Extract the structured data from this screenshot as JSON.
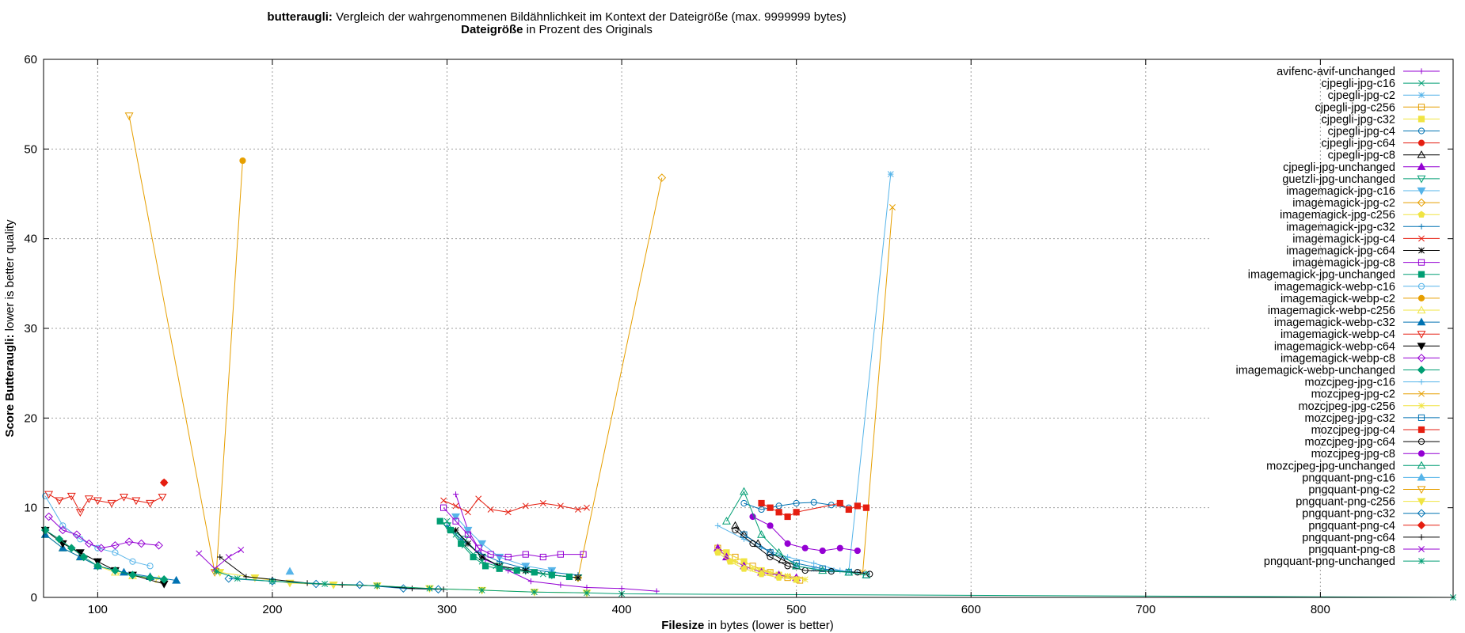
{
  "chart_data": {
    "type": "line",
    "title_bold": "butteraugli:",
    "title_rest": " Vergleich der wahrgenommenen Bildähnlichkeit im Kontext der Dateigröße (max. 9999999 bytes)",
    "subtitle_bold": "Dateigröße",
    "subtitle_rest": " in Prozent des Originals",
    "xlabel_bold": "Filesize",
    "xlabel_rest": " in bytes (lower is better)",
    "ylabel_bold": "Score Butteraugli:",
    "ylabel_rest": " lower is better quality",
    "xlim": [
      69,
      876
    ],
    "ylim": [
      0,
      60
    ],
    "xticks": [
      100,
      200,
      300,
      400,
      500,
      600,
      700,
      800
    ],
    "yticks": [
      0,
      10,
      20,
      30,
      40,
      50,
      60
    ],
    "grid": true,
    "legend_position": "right",
    "series": [
      {
        "name": "avifenc-avif-unchanged",
        "color": "#9400d3",
        "marker": "plus",
        "x": [
          305,
          312,
          322,
          335,
          348,
          365,
          380,
          400,
          420
        ],
        "y": [
          11.5,
          7.5,
          4.2,
          3.0,
          1.8,
          1.4,
          1.1,
          1.0,
          0.7
        ]
      },
      {
        "name": "cjpegli-jpg-c16",
        "color": "#009e73",
        "marker": "x",
        "x": [
          300,
          305,
          310,
          315,
          320,
          328,
          340,
          355,
          370
        ],
        "y": [
          8.5,
          7.0,
          5.8,
          4.8,
          4.0,
          3.5,
          3.0,
          2.6,
          2.3
        ]
      },
      {
        "name": "cjpegli-jpg-c2",
        "color": "#56b4e9",
        "marker": "star",
        "x": [
          500,
          510,
          520,
          530,
          554
        ],
        "y": [
          3.5,
          3.2,
          3.0,
          2.9,
          47.2
        ]
      },
      {
        "name": "cjpegli-jpg-c256",
        "color": "#e69f00",
        "marker": "square-open",
        "x": [
          455,
          465,
          475,
          485,
          495,
          502
        ],
        "y": [
          5.5,
          4.5,
          3.5,
          2.8,
          2.2,
          1.9
        ]
      },
      {
        "name": "cjpegli-jpg-c32",
        "color": "#f0e442",
        "marker": "square",
        "x": [
          460,
          470,
          480,
          490,
          500
        ],
        "y": [
          5.0,
          4.0,
          3.0,
          2.5,
          2.0
        ]
      },
      {
        "name": "cjpegli-jpg-c4",
        "color": "#0072b2",
        "marker": "circle-open",
        "x": [
          470,
          480,
          490,
          500,
          510,
          520,
          530
        ],
        "y": [
          10.5,
          9.8,
          10.2,
          10.5,
          10.6,
          10.3,
          10.0
        ]
      },
      {
        "name": "cjpegli-jpg-c64",
        "color": "#e51e10",
        "marker": "circle",
        "x": [
          138
        ],
        "y": [
          12.8
        ]
      },
      {
        "name": "cjpegli-jpg-c8",
        "color": "#000000",
        "marker": "triangle-open",
        "x": [
          465,
          470,
          478,
          485,
          492,
          500
        ],
        "y": [
          8.0,
          7.0,
          6.0,
          5.0,
          4.2,
          3.5
        ]
      },
      {
        "name": "cjpegli-jpg-unchanged",
        "color": "#9400d3",
        "marker": "triangle",
        "x": [
          455,
          460,
          470,
          480,
          490,
          500
        ],
        "y": [
          5.5,
          4.5,
          3.5,
          2.8,
          2.5,
          2.2
        ]
      },
      {
        "name": "guetzli-jpg-unchanged",
        "color": "#009e73",
        "marker": "tri-down-open",
        "x": [
          300,
          310,
          320,
          330,
          345,
          360,
          375
        ],
        "y": [
          8.0,
          6.5,
          4.5,
          3.5,
          3.0,
          2.5,
          2.2
        ]
      },
      {
        "name": "imagemagick-jpg-c16",
        "color": "#56b4e9",
        "marker": "tri-down",
        "x": [
          305,
          312,
          320,
          330,
          345,
          360
        ],
        "y": [
          9.0,
          7.5,
          6.0,
          4.5,
          3.5,
          3.0
        ]
      },
      {
        "name": "imagemagick-jpg-c2",
        "color": "#e69f00",
        "marker": "diamond-open",
        "x": [
          375,
          423
        ],
        "y": [
          2.2,
          46.8
        ]
      },
      {
        "name": "imagemagick-jpg-c256",
        "color": "#f0e442",
        "marker": "pentagon",
        "x": [
          455,
          462,
          470,
          480,
          490,
          500
        ],
        "y": [
          5.0,
          4.0,
          3.2,
          2.6,
          2.2,
          2.0
        ]
      },
      {
        "name": "imagemagick-jpg-c32",
        "color": "#0072b2",
        "marker": "plus",
        "x": [
          300,
          308,
          318,
          330,
          345,
          360,
          375
        ],
        "y": [
          8.0,
          6.5,
          5.0,
          4.0,
          3.2,
          2.8,
          2.5
        ]
      },
      {
        "name": "imagemagick-jpg-c4",
        "color": "#e51e10",
        "marker": "x",
        "x": [
          298,
          305,
          312,
          318,
          325,
          335,
          345,
          355,
          365,
          375,
          380
        ],
        "y": [
          10.8,
          10.2,
          9.5,
          11.0,
          9.8,
          9.5,
          10.2,
          10.5,
          10.2,
          9.8,
          10.0
        ]
      },
      {
        "name": "imagemagick-jpg-c64",
        "color": "#000000",
        "marker": "star",
        "x": [
          305,
          312,
          320,
          330,
          345,
          360,
          375
        ],
        "y": [
          7.5,
          6.0,
          4.5,
          3.5,
          3.0,
          2.5,
          2.2
        ]
      },
      {
        "name": "imagemagick-jpg-c8",
        "color": "#9400d3",
        "marker": "square-open",
        "x": [
          298,
          305,
          312,
          318,
          325,
          335,
          345,
          355,
          365,
          378
        ],
        "y": [
          10.0,
          8.5,
          7.0,
          5.5,
          4.8,
          4.5,
          4.8,
          4.5,
          4.8,
          4.8
        ]
      },
      {
        "name": "imagemagick-jpg-unchanged",
        "color": "#009e73",
        "marker": "square",
        "x": [
          296,
          302,
          308,
          315,
          322,
          330,
          340,
          350,
          360,
          370
        ],
        "y": [
          8.5,
          7.5,
          6.0,
          4.5,
          3.5,
          3.2,
          3.0,
          2.8,
          2.5,
          2.3
        ]
      },
      {
        "name": "imagemagick-webp-c16",
        "color": "#56b4e9",
        "marker": "circle-open",
        "x": [
          70,
          80,
          90,
          100,
          110,
          120,
          130
        ],
        "y": [
          11.3,
          8.0,
          6.5,
          5.5,
          5.0,
          4.0,
          3.5
        ]
      },
      {
        "name": "imagemagick-webp-c2",
        "color": "#e69f00",
        "marker": "circle",
        "x": [
          168,
          183
        ],
        "y": [
          3.0,
          48.7
        ]
      },
      {
        "name": "imagemagick-webp-c256",
        "color": "#f0e442",
        "marker": "triangle-open",
        "x": [
          70,
          80,
          90,
          100,
          110,
          120,
          135
        ],
        "y": [
          7.0,
          5.5,
          4.5,
          3.5,
          2.8,
          2.4,
          2.0
        ]
      },
      {
        "name": "imagemagick-webp-c32",
        "color": "#0072b2",
        "marker": "triangle",
        "x": [
          70,
          80,
          90,
          100,
          115,
          130,
          145
        ],
        "y": [
          7.0,
          5.5,
          4.5,
          3.5,
          2.8,
          2.3,
          1.9
        ]
      },
      {
        "name": "imagemagick-webp-c4",
        "color": "#e51e10",
        "marker": "tri-down-open",
        "x": [
          72,
          78,
          85,
          90,
          95,
          100,
          108,
          115,
          122,
          130,
          137
        ],
        "y": [
          11.5,
          10.8,
          11.3,
          9.5,
          11.0,
          10.8,
          10.5,
          11.2,
          10.8,
          10.5,
          11.2
        ]
      },
      {
        "name": "imagemagick-webp-c64",
        "color": "#000000",
        "marker": "tri-down",
        "x": [
          70,
          80,
          90,
          100,
          110,
          120,
          138
        ],
        "y": [
          7.5,
          6.0,
          5.0,
          4.0,
          3.0,
          2.5,
          1.5
        ]
      },
      {
        "name": "imagemagick-webp-c8",
        "color": "#9400d3",
        "marker": "diamond-open",
        "x": [
          72,
          80,
          88,
          95,
          102,
          110,
          118,
          125,
          135
        ],
        "y": [
          9.0,
          7.5,
          7.0,
          6.0,
          5.5,
          5.8,
          6.2,
          6.0,
          5.8
        ]
      },
      {
        "name": "imagemagick-webp-unchanged",
        "color": "#009e73",
        "marker": "diamond",
        "x": [
          70,
          78,
          85,
          92,
          100,
          110,
          120,
          130,
          138
        ],
        "y": [
          7.5,
          6.5,
          5.5,
          4.5,
          3.5,
          3.0,
          2.5,
          2.2,
          2.0
        ]
      },
      {
        "name": "mozcjpeg-jpg-c16",
        "color": "#56b4e9",
        "marker": "plus",
        "x": [
          455,
          470,
          480,
          495,
          510,
          525,
          535
        ],
        "y": [
          8.0,
          6.5,
          5.5,
          4.5,
          3.8,
          3.0,
          2.8
        ]
      },
      {
        "name": "mozcjpeg-jpg-c2",
        "color": "#e69f00",
        "marker": "x",
        "x": [
          538,
          555
        ],
        "y": [
          2.8,
          43.5
        ]
      },
      {
        "name": "mozcjpeg-jpg-c256",
        "color": "#f0e442",
        "marker": "star",
        "x": [
          455,
          465,
          475,
          485,
          495,
          505
        ],
        "y": [
          5.2,
          4.0,
          3.2,
          2.8,
          2.4,
          2.0
        ]
      },
      {
        "name": "mozcjpeg-jpg-c32",
        "color": "#0072b2",
        "marker": "square-open",
        "x": [
          470,
          485,
          500,
          515,
          530,
          540
        ],
        "y": [
          7.0,
          5.0,
          3.8,
          3.2,
          2.8,
          2.5
        ]
      },
      {
        "name": "mozcjpeg-jpg-c4",
        "color": "#e51e10",
        "marker": "square",
        "x": [
          480,
          485,
          490,
          495,
          500,
          525,
          530,
          535,
          540
        ],
        "y": [
          10.5,
          10.0,
          9.5,
          9.0,
          9.5,
          10.5,
          9.8,
          10.2,
          10.0
        ]
      },
      {
        "name": "mozcjpeg-jpg-c64",
        "color": "#000000",
        "marker": "circle-open",
        "x": [
          465,
          475,
          485,
          495,
          505,
          520,
          535,
          542
        ],
        "y": [
          7.5,
          6.0,
          4.5,
          3.5,
          3.0,
          2.9,
          2.8,
          2.6
        ]
      },
      {
        "name": "mozcjpeg-jpg-c8",
        "color": "#9400d3",
        "marker": "circle",
        "x": [
          475,
          485,
          495,
          505,
          515,
          525,
          535
        ],
        "y": [
          9.0,
          8.0,
          6.0,
          5.5,
          5.2,
          5.5,
          5.2
        ]
      },
      {
        "name": "mozcjpeg-jpg-unchanged",
        "color": "#009e73",
        "marker": "triangle-open",
        "x": [
          460,
          470,
          480,
          490,
          500,
          515,
          530,
          540
        ],
        "y": [
          8.5,
          11.8,
          7.0,
          5.0,
          3.5,
          3.0,
          2.8,
          2.5
        ]
      },
      {
        "name": "pngquant-png-c16",
        "color": "#56b4e9",
        "marker": "triangle",
        "x": [
          210
        ],
        "y": [
          2.9
        ]
      },
      {
        "name": "pngquant-png-c2",
        "color": "#e69f00",
        "marker": "tri-down-open",
        "x": [
          118,
          167
        ],
        "y": [
          53.7,
          2.8
        ]
      },
      {
        "name": "pngquant-png-c256",
        "color": "#f0e442",
        "marker": "tri-down",
        "x": [
          170,
          190,
          210,
          235,
          260,
          290,
          320,
          350,
          380
        ],
        "y": [
          2.8,
          2.2,
          1.6,
          1.4,
          1.3,
          1.0,
          0.8,
          0.6,
          0.5
        ]
      },
      {
        "name": "pngquant-png-c32",
        "color": "#0072b2",
        "marker": "diamond-open",
        "x": [
          175,
          200,
          225,
          250,
          275,
          295
        ],
        "y": [
          2.1,
          1.8,
          1.5,
          1.4,
          1.0,
          0.9
        ]
      },
      {
        "name": "pngquant-png-c4",
        "color": "#e51e10",
        "marker": "diamond",
        "x": [
          138
        ],
        "y": [
          12.8
        ]
      },
      {
        "name": "pngquant-png-c64",
        "color": "#000000",
        "marker": "plus",
        "x": [
          170,
          185,
          200,
          220,
          240,
          260,
          280,
          298
        ],
        "y": [
          4.5,
          2.3,
          2.0,
          1.6,
          1.4,
          1.3,
          1.0,
          0.9
        ]
      },
      {
        "name": "pngquant-png-c8",
        "color": "#9400d3",
        "marker": "x",
        "x": [
          158,
          167,
          175,
          182
        ],
        "y": [
          4.9,
          3.2,
          4.5,
          5.3
        ]
      },
      {
        "name": "pngquant-png-unchanged",
        "color": "#009e73",
        "marker": "star",
        "x": [
          168,
          180,
          200,
          230,
          260,
          290,
          320,
          350,
          380,
          400,
          876
        ],
        "y": [
          2.9,
          2.1,
          1.8,
          1.5,
          1.3,
          1.0,
          0.8,
          0.6,
          0.5,
          0.4,
          0.0
        ]
      }
    ]
  }
}
